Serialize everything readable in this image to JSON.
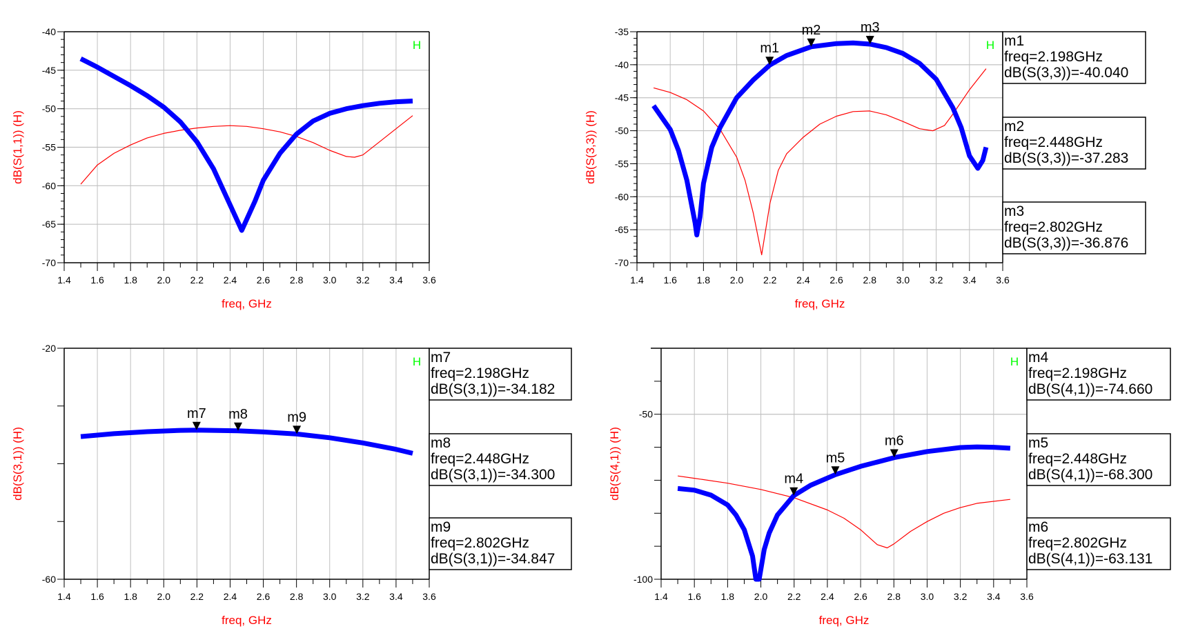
{
  "colors": {
    "primary": "#0000ff",
    "secondary": "#ff0000",
    "grid": "#c0c0c0",
    "axis_label": "#ff0000",
    "h_marker": "#00ff00"
  },
  "chart_data": [
    {
      "type": "line",
      "xlabel": "freq, GHz",
      "ylabel": "dB(S(1,1)) (H)",
      "h_label": "H",
      "xlim": [
        1.4,
        3.6
      ],
      "ylim": [
        -70,
        -40
      ],
      "xticks": [
        "1.4",
        "1.6",
        "1.8",
        "2.0",
        "2.2",
        "2.4",
        "2.6",
        "2.8",
        "3.0",
        "3.2",
        "3.4",
        "3.6"
      ],
      "yticks": [
        {
          "v": -40,
          "label": "-40"
        },
        {
          "v": -45,
          "label": "-45"
        },
        {
          "v": -50,
          "label": "-50"
        },
        {
          "v": -55,
          "label": "-55"
        },
        {
          "v": -60,
          "label": "-60"
        },
        {
          "v": -65,
          "label": "-65"
        },
        {
          "v": -70,
          "label": "-70"
        }
      ],
      "ygrid": [
        -45,
        -50,
        -55,
        -60,
        -65
      ],
      "yminor_step": 1,
      "grid": true,
      "series": [
        {
          "name": "blue",
          "color": "#0000ff",
          "width": "thick",
          "x": [
            1.5,
            1.6,
            1.7,
            1.8,
            1.9,
            2.0,
            2.1,
            2.2,
            2.3,
            2.4,
            2.47,
            2.55,
            2.6,
            2.7,
            2.8,
            2.9,
            3.0,
            3.1,
            3.2,
            3.3,
            3.4,
            3.5
          ],
          "y": [
            -43.5,
            -44.6,
            -45.8,
            -47.0,
            -48.3,
            -49.8,
            -51.7,
            -54.3,
            -57.8,
            -62.5,
            -65.8,
            -62.0,
            -59.3,
            -55.8,
            -53.3,
            -51.6,
            -50.6,
            -50.0,
            -49.6,
            -49.3,
            -49.1,
            -49.0
          ]
        },
        {
          "name": "red",
          "color": "#ff0000",
          "width": "thin",
          "x": [
            1.5,
            1.6,
            1.7,
            1.8,
            1.9,
            2.0,
            2.1,
            2.2,
            2.3,
            2.4,
            2.5,
            2.6,
            2.7,
            2.8,
            2.9,
            3.0,
            3.1,
            3.15,
            3.2,
            3.3,
            3.4,
            3.5
          ],
          "y": [
            -59.8,
            -57.3,
            -55.8,
            -54.7,
            -53.8,
            -53.2,
            -52.8,
            -52.5,
            -52.3,
            -52.2,
            -52.3,
            -52.6,
            -53.0,
            -53.6,
            -54.4,
            -55.4,
            -56.2,
            -56.3,
            -56.0,
            -54.3,
            -52.6,
            -50.9
          ]
        }
      ],
      "markers": []
    },
    {
      "type": "line",
      "xlabel": "freq, GHz",
      "ylabel": "dB(S(3,3)) (H)",
      "h_label": "H",
      "xlim": [
        1.4,
        3.6
      ],
      "ylim": [
        -70,
        -35
      ],
      "xticks": [
        "1.4",
        "1.6",
        "1.8",
        "2.0",
        "2.2",
        "2.4",
        "2.6",
        "2.8",
        "3.0",
        "3.2",
        "3.4",
        "3.6"
      ],
      "yticks": [
        {
          "v": -35,
          "label": "-35"
        },
        {
          "v": -40,
          "label": "-40"
        },
        {
          "v": -45,
          "label": "-45"
        },
        {
          "v": -50,
          "label": "-50"
        },
        {
          "v": -55,
          "label": "-55"
        },
        {
          "v": -60,
          "label": "-60"
        },
        {
          "v": -65,
          "label": "-65"
        },
        {
          "v": -70,
          "label": "-70"
        }
      ],
      "ygrid": [
        -40,
        -45,
        -50,
        -55,
        -60,
        -65
      ],
      "yminor_step": 1,
      "grid": true,
      "series": [
        {
          "name": "blue",
          "color": "#0000ff",
          "width": "thick",
          "x": [
            1.5,
            1.6,
            1.65,
            1.7,
            1.75,
            1.76,
            1.78,
            1.8,
            1.85,
            1.9,
            2.0,
            2.1,
            2.2,
            2.3,
            2.448,
            2.6,
            2.7,
            2.802,
            2.9,
            3.0,
            3.1,
            3.2,
            3.3,
            3.35,
            3.4,
            3.45,
            3.48,
            3.5
          ],
          "y": [
            -46.2,
            -49.8,
            -53,
            -57.5,
            -64,
            -65.8,
            -63,
            -58,
            -52.5,
            -49.5,
            -45.0,
            -42.3,
            -40.04,
            -38.6,
            -37.28,
            -36.8,
            -36.7,
            -36.88,
            -37.4,
            -38.3,
            -39.8,
            -42.2,
            -46.5,
            -49.5,
            -53.8,
            -55.7,
            -54.5,
            -52.5
          ]
        },
        {
          "name": "red",
          "color": "#ff0000",
          "width": "thin",
          "x": [
            1.5,
            1.6,
            1.7,
            1.8,
            1.9,
            2.0,
            2.05,
            2.1,
            2.15,
            2.2,
            2.25,
            2.3,
            2.4,
            2.5,
            2.6,
            2.7,
            2.8,
            2.9,
            3.0,
            3.1,
            3.18,
            3.25,
            3.3,
            3.4,
            3.5
          ],
          "y": [
            -43.5,
            -44.2,
            -45.3,
            -47.0,
            -49.8,
            -54,
            -57.5,
            -62.5,
            -68.8,
            -61,
            -56,
            -53.5,
            -51.0,
            -49.0,
            -47.8,
            -47.1,
            -47.0,
            -47.6,
            -48.6,
            -49.7,
            -50.0,
            -49.2,
            -47.5,
            -43.8,
            -40.6
          ]
        }
      ],
      "markers": [
        {
          "name": "m1",
          "freq": 2.198,
          "value": -40.04,
          "lines": [
            "m1",
            "freq=2.198GHz",
            "dB(S(3,3))=-40.040"
          ]
        },
        {
          "name": "m2",
          "freq": 2.448,
          "value": -37.283,
          "lines": [
            "m2",
            "freq=2.448GHz",
            "dB(S(3,3))=-37.283"
          ]
        },
        {
          "name": "m3",
          "freq": 2.802,
          "value": -36.876,
          "lines": [
            "m3",
            "freq=2.802GHz",
            "dB(S(3,3))=-36.876"
          ]
        }
      ]
    },
    {
      "type": "line",
      "xlabel": "freq, GHz",
      "ylabel": "dB(S(3,1)) (H)",
      "h_label": "H",
      "xlim": [
        1.4,
        3.6
      ],
      "ylim": [
        -60,
        -20
      ],
      "xticks": [
        "1.4",
        "1.6",
        "1.8",
        "2.0",
        "2.2",
        "2.4",
        "2.6",
        "2.8",
        "3.0",
        "3.2",
        "3.4",
        "3.6"
      ],
      "yticks": [
        {
          "v": -20,
          "label": "-20"
        },
        {
          "v": -30,
          "label": ""
        },
        {
          "v": -40,
          "label": ""
        },
        {
          "v": -50,
          "label": ""
        },
        {
          "v": -60,
          "label": "-60"
        }
      ],
      "ygrid": [],
      "yminor_step": 0,
      "grid": true,
      "series": [
        {
          "name": "blue",
          "color": "#0000ff",
          "width": "thick",
          "x": [
            1.5,
            1.7,
            1.9,
            2.1,
            2.198,
            2.448,
            2.6,
            2.802,
            3.0,
            3.2,
            3.4,
            3.5
          ],
          "y": [
            -35.3,
            -34.8,
            -34.45,
            -34.22,
            -34.18,
            -34.3,
            -34.5,
            -34.85,
            -35.5,
            -36.4,
            -37.5,
            -38.2
          ]
        },
        {
          "name": "red",
          "color": "#ff0000",
          "width": "thin",
          "x": [
            1.5,
            1.7,
            1.9,
            2.1,
            2.198,
            2.448,
            2.6,
            2.802,
            3.0,
            3.2,
            3.4,
            3.5
          ],
          "y": [
            -35.1,
            -34.6,
            -34.25,
            -34.02,
            -33.98,
            -34.1,
            -34.3,
            -34.65,
            -35.3,
            -36.2,
            -37.3,
            -38.0
          ]
        }
      ],
      "markers": [
        {
          "name": "m7",
          "freq": 2.198,
          "value": -34.182,
          "lines": [
            "m7",
            "freq=2.198GHz",
            "dB(S(3,1))=-34.182"
          ]
        },
        {
          "name": "m8",
          "freq": 2.448,
          "value": -34.3,
          "lines": [
            "m8",
            "freq=2.448GHz",
            "dB(S(3,1))=-34.300"
          ]
        },
        {
          "name": "m9",
          "freq": 2.802,
          "value": -34.847,
          "lines": [
            "m9",
            "freq=2.802GHz",
            "dB(S(3,1))=-34.847"
          ]
        }
      ]
    },
    {
      "type": "line",
      "xlabel": "freq, GHz",
      "ylabel": "dB(S(4,1)) (H)",
      "h_label": "H",
      "xlim": [
        1.4,
        3.6
      ],
      "ylim": [
        -100,
        -30
      ],
      "xticks": [
        "1.4",
        "1.6",
        "1.8",
        "2.0",
        "2.2",
        "2.4",
        "2.6",
        "2.8",
        "3.0",
        "3.2",
        "3.4",
        "3.6"
      ],
      "yticks": [
        {
          "v": -40,
          "label": ""
        },
        {
          "v": -50,
          "label": "-50"
        },
        {
          "v": -60,
          "label": ""
        },
        {
          "v": -70,
          "label": ""
        },
        {
          "v": -80,
          "label": ""
        },
        {
          "v": -90,
          "label": ""
        },
        {
          "v": -100,
          "label": "-100"
        }
      ],
      "ygrid": [
        -50
      ],
      "yminor_step": 0,
      "grid": true,
      "series": [
        {
          "name": "blue",
          "color": "#0000ff",
          "width": "thick",
          "x": [
            1.5,
            1.6,
            1.7,
            1.8,
            1.85,
            1.9,
            1.95,
            1.97,
            1.99,
            2.02,
            2.05,
            2.1,
            2.198,
            2.3,
            2.448,
            2.6,
            2.802,
            3.0,
            3.2,
            3.3,
            3.4,
            3.5
          ],
          "y": [
            -72.5,
            -73.0,
            -74.5,
            -77.5,
            -80.5,
            -85,
            -93,
            -100,
            -100,
            -91,
            -86,
            -80.5,
            -74.66,
            -71.5,
            -68.3,
            -65.8,
            -63.13,
            -61.3,
            -60.1,
            -59.9,
            -60.0,
            -60.3
          ]
        },
        {
          "name": "red",
          "color": "#ff0000",
          "width": "thin",
          "x": [
            1.5,
            1.6,
            1.8,
            2.0,
            2.2,
            2.4,
            2.5,
            2.6,
            2.7,
            2.76,
            2.8,
            2.9,
            3.0,
            3.1,
            3.2,
            3.3,
            3.5
          ],
          "y": [
            -68.7,
            -69.4,
            -70.9,
            -72.8,
            -75.3,
            -79,
            -81.5,
            -85,
            -89.5,
            -90.5,
            -89.3,
            -85.5,
            -82.5,
            -80.0,
            -78.3,
            -77.0,
            -75.8
          ]
        }
      ],
      "markers": [
        {
          "name": "m4",
          "freq": 2.198,
          "value": -74.66,
          "lines": [
            "m4",
            "freq=2.198GHz",
            "dB(S(4,1))=-74.660"
          ]
        },
        {
          "name": "m5",
          "freq": 2.448,
          "value": -68.3,
          "lines": [
            "m5",
            "freq=2.448GHz",
            "dB(S(4,1))=-68.300"
          ]
        },
        {
          "name": "m6",
          "freq": 2.802,
          "value": -63.131,
          "lines": [
            "m6",
            "freq=2.802GHz",
            "dB(S(4,1))=-63.131"
          ]
        }
      ]
    }
  ]
}
